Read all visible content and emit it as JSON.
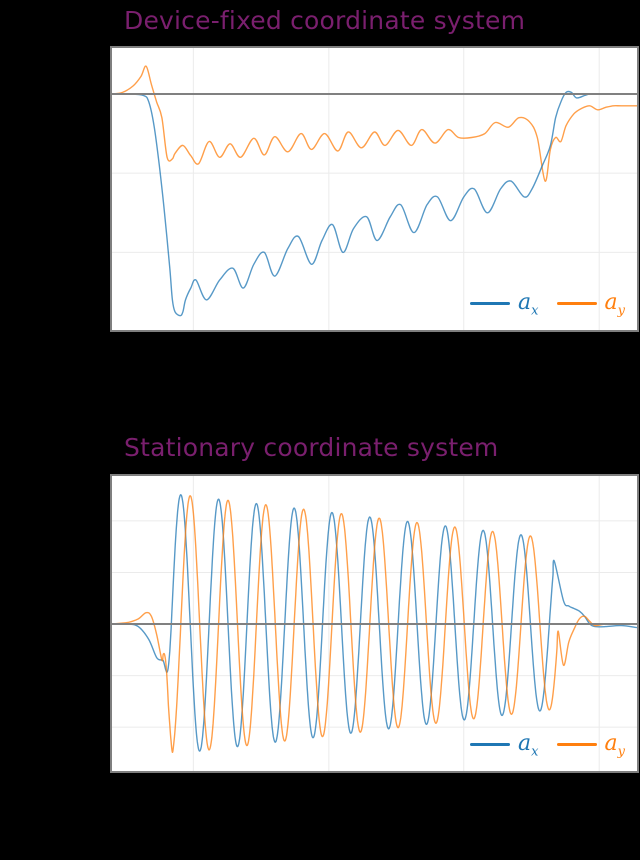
{
  "colors": {
    "background": "#000000",
    "title": "#7a1f6e",
    "plot_bg": "#ffffff",
    "frame": "#7f7f7f",
    "grid": "#ebebeb",
    "zero_line": "#808080",
    "ax": "#1f77b4",
    "ay": "#ff7f0e"
  },
  "chart_data": [
    {
      "type": "line",
      "title": "Device-fixed coordinate system",
      "xlabel": "",
      "ylabel": "",
      "grid": true,
      "legend_position": "lower right",
      "legend": [
        {
          "name": "a_x",
          "label": "a",
          "sub": "x",
          "color": "#1f77b4"
        },
        {
          "name": "a_y",
          "label": "a",
          "sub": "y",
          "color": "#ff7f0e"
        }
      ],
      "xlim": [
        0,
        100
      ],
      "ylim": [
        -2.98,
        0.58
      ],
      "x_gridlines": [
        15.5,
        41.3,
        67.0,
        92.8
      ],
      "y_gridlines": [
        -1,
        -2
      ],
      "zero_line": 0,
      "series": [
        {
          "name": "a_x",
          "x": [
            0,
            3,
            6,
            7,
            8,
            9,
            10,
            11,
            11.5,
            12,
            13,
            13.5,
            14,
            15,
            16,
            18,
            20.5,
            23,
            25,
            27,
            29,
            31,
            33.5,
            35.5,
            38,
            40,
            42,
            44,
            46,
            48.5,
            50.5,
            53,
            55,
            57.5,
            60,
            62,
            64.5,
            67,
            69,
            71.5,
            74,
            76,
            78.5,
            80,
            82,
            83.5,
            84.5,
            85.5,
            86.5,
            87.5,
            88.5,
            90,
            91,
            92,
            94,
            96,
            100
          ],
          "y": [
            0,
            0,
            -0.02,
            -0.1,
            -0.4,
            -0.9,
            -1.5,
            -2.2,
            -2.6,
            -2.75,
            -2.8,
            -2.75,
            -2.6,
            -2.45,
            -2.35,
            -2.6,
            -2.35,
            -2.2,
            -2.45,
            -2.15,
            -2.0,
            -2.3,
            -1.95,
            -1.8,
            -2.15,
            -1.85,
            -1.65,
            -2.0,
            -1.7,
            -1.55,
            -1.85,
            -1.55,
            -1.4,
            -1.75,
            -1.4,
            -1.3,
            -1.6,
            -1.3,
            -1.2,
            -1.5,
            -1.2,
            -1.1,
            -1.3,
            -1.2,
            -0.9,
            -0.65,
            -0.3,
            -0.1,
            0.02,
            0.02,
            -0.05,
            -0.02,
            0,
            0,
            0,
            0,
            0
          ]
        },
        {
          "name": "a_y",
          "x": [
            0,
            2,
            4,
            5.5,
            6.5,
            7.5,
            8.5,
            9.5,
            10.5,
            11.5,
            12,
            13.5,
            15,
            16.5,
            18.5,
            20.5,
            22.5,
            24.5,
            27,
            29,
            31,
            33.5,
            36,
            38,
            40.5,
            43,
            45,
            47.5,
            50,
            52,
            54.5,
            57,
            59,
            61.5,
            64,
            66,
            68.5,
            71,
            73,
            75.5,
            77.5,
            79.5,
            81,
            82.5,
            83.5,
            84.5,
            85.5,
            86.5,
            88,
            89.5,
            91,
            92.5,
            94,
            95.5,
            97,
            100
          ],
          "y": [
            0,
            0.02,
            0.1,
            0.22,
            0.35,
            0.12,
            -0.1,
            -0.3,
            -0.8,
            -0.82,
            -0.75,
            -0.65,
            -0.78,
            -0.88,
            -0.6,
            -0.8,
            -0.63,
            -0.8,
            -0.56,
            -0.77,
            -0.54,
            -0.73,
            -0.5,
            -0.7,
            -0.5,
            -0.72,
            -0.48,
            -0.68,
            -0.48,
            -0.65,
            -0.46,
            -0.65,
            -0.45,
            -0.62,
            -0.45,
            -0.55,
            -0.55,
            -0.5,
            -0.36,
            -0.42,
            -0.3,
            -0.35,
            -0.55,
            -1.1,
            -0.7,
            -0.55,
            -0.6,
            -0.4,
            -0.25,
            -0.18,
            -0.15,
            -0.2,
            -0.17,
            -0.15,
            -0.15,
            -0.15
          ]
        }
      ]
    },
    {
      "type": "line",
      "title": "Stationary coordinate system",
      "xlabel": "",
      "ylabel": "",
      "grid": true,
      "legend_position": "lower right",
      "legend": [
        {
          "name": "a_x",
          "label": "a",
          "sub": "x",
          "color": "#1f77b4"
        },
        {
          "name": "a_y",
          "label": "a",
          "sub": "y",
          "color": "#ff7f0e"
        }
      ],
      "xlim": [
        0,
        100
      ],
      "ylim": [
        -2.85,
        2.87
      ],
      "x_gridlines": [
        15.5,
        41.3,
        67.0,
        92.8
      ],
      "y_gridlines": [
        2,
        1,
        -1,
        -2
      ],
      "zero_line": 0,
      "oscillation": {
        "start_x": 9.5,
        "end_x": 84.5,
        "period": 7.2,
        "phase_lag_ay": 1.8,
        "amplitude_start": 2.55,
        "amplitude_end": 1.65
      },
      "series": [
        {
          "name": "a_x",
          "pre": {
            "x": [
              0,
              3,
              5,
              7,
              8.5,
              9.5
            ],
            "y": [
              0,
              0,
              -0.05,
              -0.3,
              -0.65,
              -0.7
            ]
          },
          "post": {
            "x": [
              86,
              87,
              88,
              89,
              90,
              91,
              92,
              94,
              97,
              100
            ],
            "y": [
              0.45,
              0.35,
              0.3,
              0.25,
              0.15,
              0,
              -0.05,
              -0.05,
              -0.03,
              -0.07
            ]
          }
        },
        {
          "name": "a_y",
          "pre": {
            "x": [
              0,
              3,
              5,
              6.5,
              7.5,
              8.5,
              9.5
            ],
            "y": [
              0,
              0.03,
              0.1,
              0.22,
              0.15,
              -0.2,
              -0.7
            ]
          },
          "post": {
            "x": [
              86,
              87,
              88,
              89,
              90,
              91,
              92,
              94,
              97,
              100
            ],
            "y": [
              -0.8,
              -0.35,
              -0.1,
              0.1,
              0.15,
              0.05,
              -0.03,
              0,
              0,
              0
            ]
          }
        }
      ]
    }
  ]
}
